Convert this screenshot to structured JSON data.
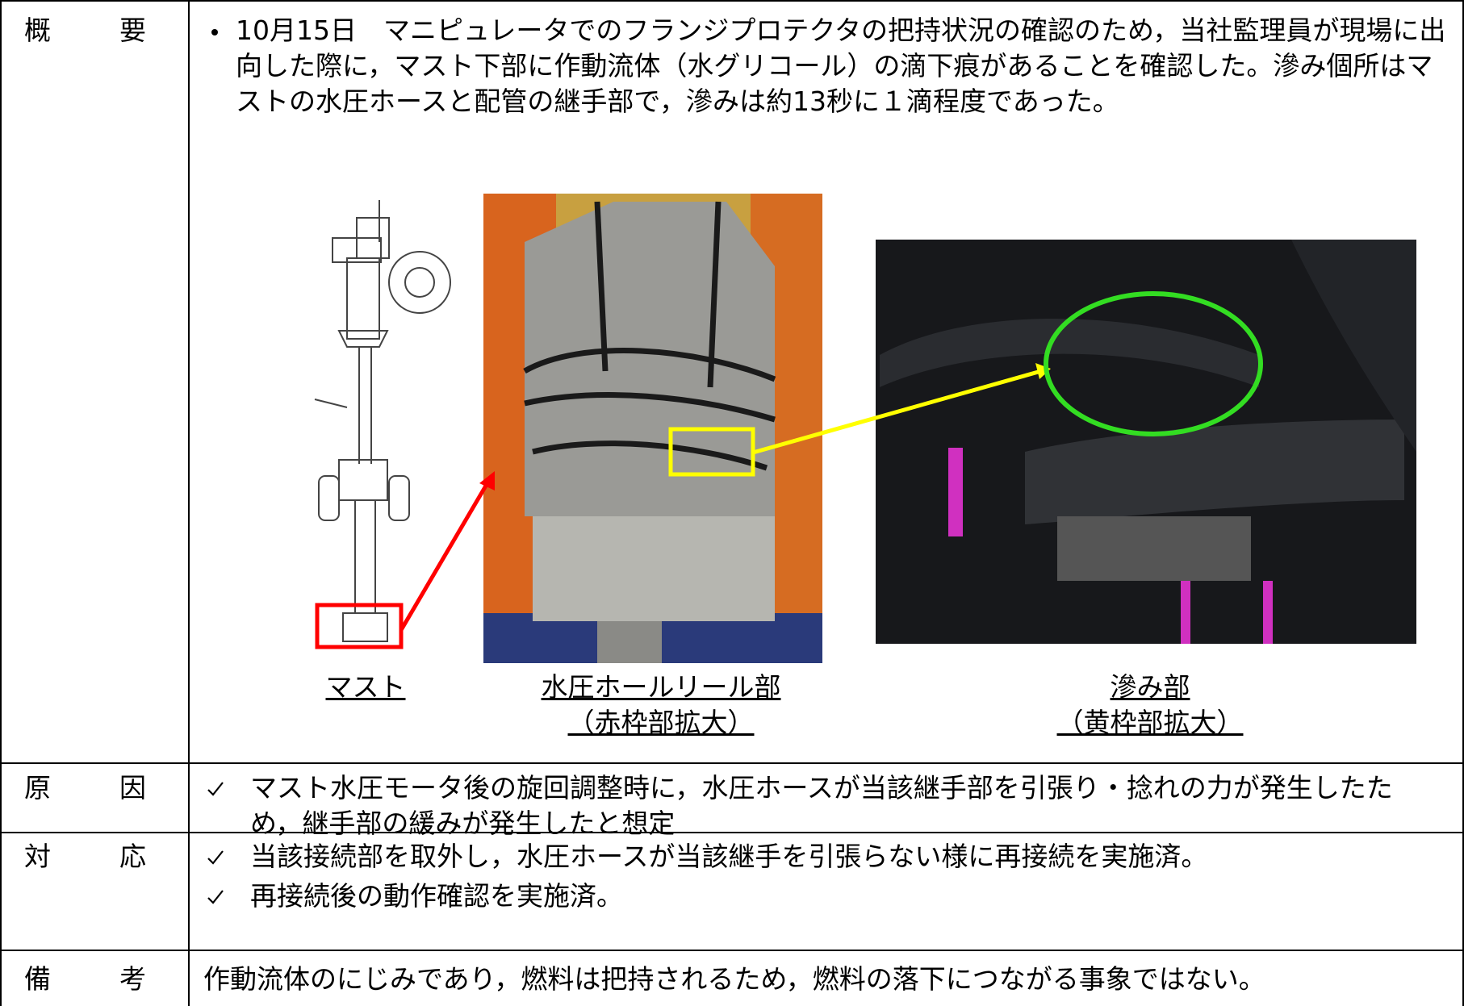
{
  "table": {
    "rows": [
      {
        "label": "概　要",
        "text": "10月15日　マニピュレータでのフランジプロテクタの把持状況の確認のため，当社監理員が現場に出向した際に，マスト下部に作動流体（水グリコール）の滴下痕があることを確認した。滲み個所はマストの水圧ホースと配管の継手部で，滲みは約13秒に１滴程度であった。",
        "figures": [
          {
            "caption": "マスト"
          },
          {
            "caption": "水圧ホールリール部",
            "subcaption": "（赤枠部拡大）"
          },
          {
            "caption": "滲み部",
            "subcaption": "（黄枠部拡大）"
          }
        ]
      },
      {
        "label": "原　因",
        "items": [
          "マスト水圧モータ後の旋回調整時に，水圧ホースが当該継手部を引張り・捻れの力が発生したため，継手部の緩みが発生したと想定"
        ]
      },
      {
        "label": "対　応",
        "items": [
          "当該接続部を取外し，水圧ホースが当該継手を引張らない様に再接続を実施済。",
          "再接続後の動作確認を実施済。"
        ]
      },
      {
        "label": "備　考",
        "text": "作動流体のにじみであり，燃料は把持されるため，燃料の落下につながる事象ではない。"
      }
    ]
  }
}
